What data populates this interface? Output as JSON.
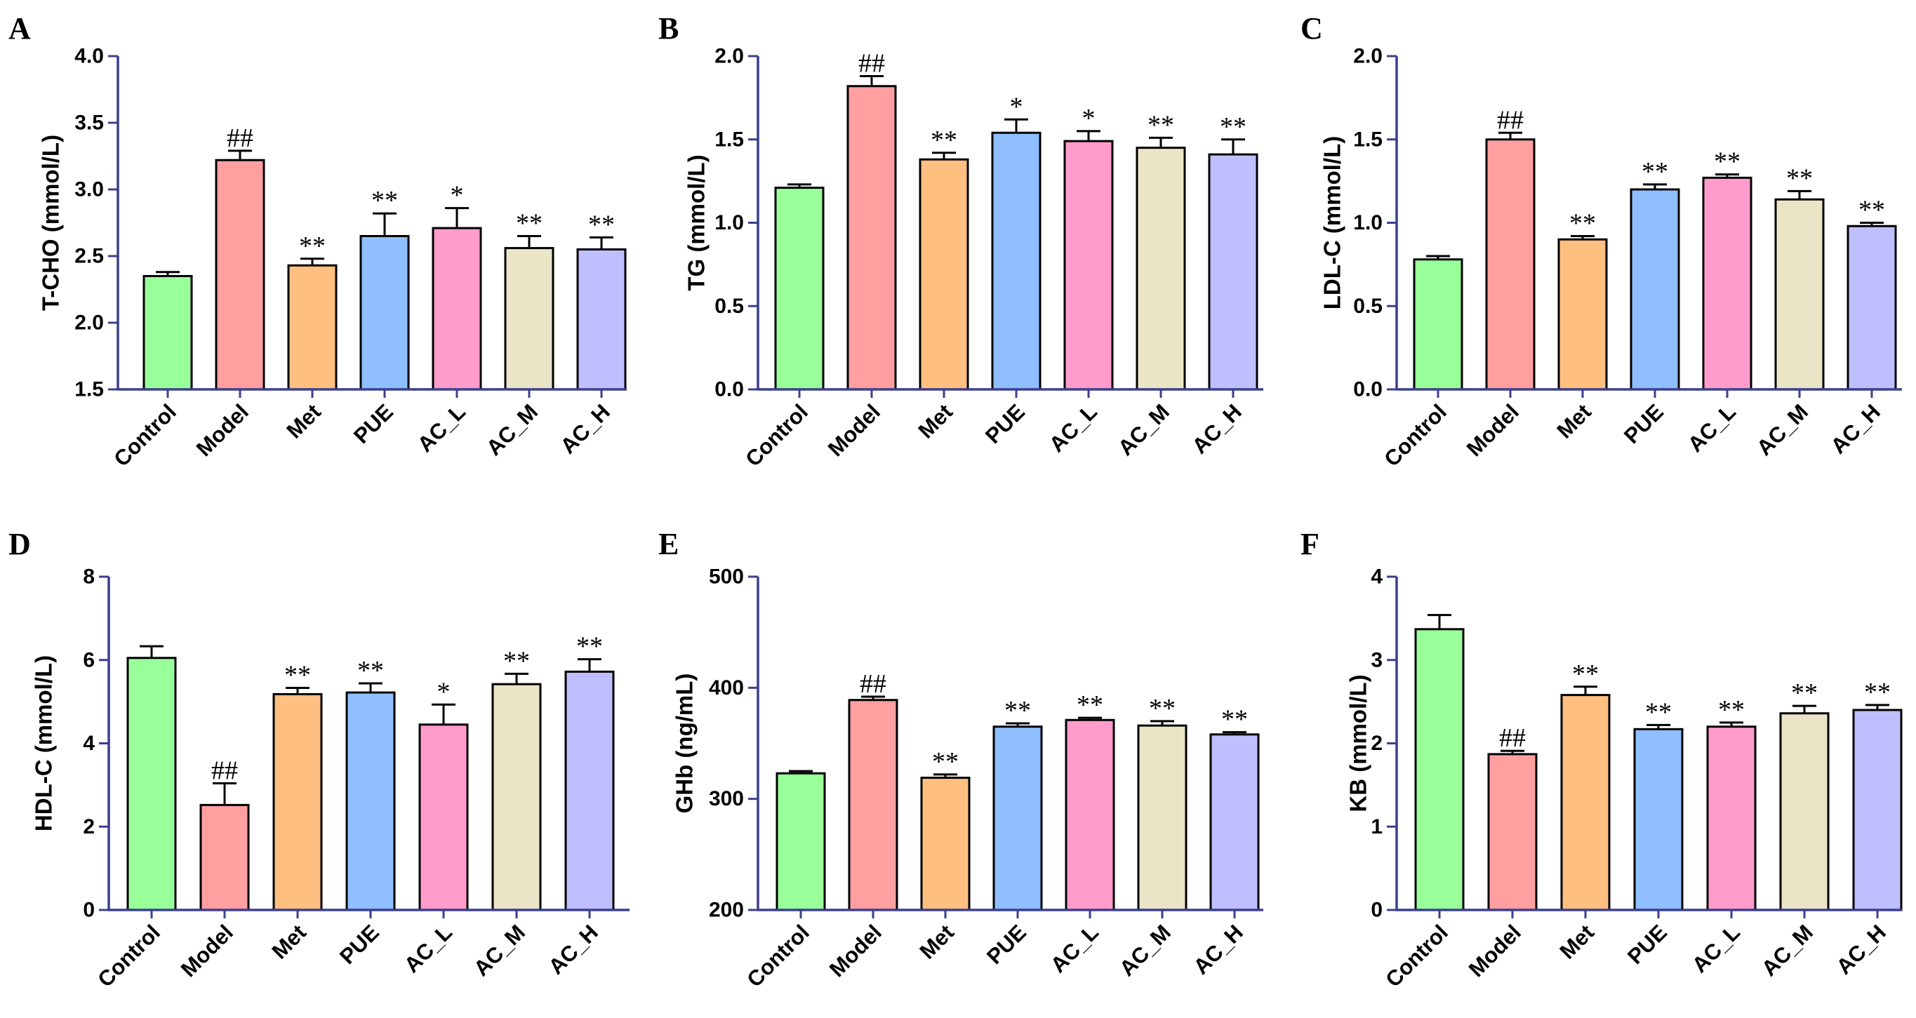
{
  "colors": {
    "axis": "#3b3f8f",
    "bar_outline": "#000000",
    "groups": [
      "#99ff99",
      "#ff9f9f",
      "#ffbf80",
      "#8fbfff",
      "#ff9ccc",
      "#ebe5c8",
      "#bfbfff"
    ]
  },
  "chart_data": [
    {
      "type": "bar",
      "panel": "A",
      "ylabel": "T-CHO (mmol/L)",
      "ylim": [
        1.5,
        4.0
      ],
      "yticks": [
        "1.5",
        "2.0",
        "2.5",
        "3.0",
        "3.5",
        "4.0"
      ],
      "ytick_values": [
        1.5,
        2.0,
        2.5,
        3.0,
        3.5,
        4.0
      ],
      "categories": [
        "Control",
        "Model",
        "Met",
        "PUE",
        "AC_L",
        "AC_M",
        "AC_H"
      ],
      "values": [
        2.35,
        3.22,
        2.43,
        2.65,
        2.71,
        2.56,
        2.55
      ],
      "errors": [
        0.03,
        0.07,
        0.05,
        0.17,
        0.15,
        0.09,
        0.09
      ],
      "significance": [
        "",
        "##",
        "**",
        "**",
        "*",
        "**",
        "**"
      ]
    },
    {
      "type": "bar",
      "panel": "B",
      "ylabel": "TG (mmol/L)",
      "ylim": [
        0.0,
        2.0
      ],
      "yticks": [
        "0.0",
        "0.5",
        "1.0",
        "1.5",
        "2.0"
      ],
      "ytick_values": [
        0.0,
        0.5,
        1.0,
        1.5,
        2.0
      ],
      "categories": [
        "Control",
        "Model",
        "Met",
        "PUE",
        "AC_L",
        "AC_M",
        "AC_H"
      ],
      "values": [
        1.21,
        1.82,
        1.38,
        1.54,
        1.49,
        1.45,
        1.41
      ],
      "errors": [
        0.02,
        0.06,
        0.04,
        0.08,
        0.06,
        0.06,
        0.09
      ],
      "significance": [
        "",
        "##",
        "**",
        "*",
        "*",
        "**",
        "**"
      ]
    },
    {
      "type": "bar",
      "panel": "C",
      "ylabel": "LDL-C (mmol/L)",
      "ylim": [
        0.0,
        2.0
      ],
      "yticks": [
        "0.0",
        "0.5",
        "1.0",
        "1.5",
        "2.0"
      ],
      "ytick_values": [
        0.0,
        0.5,
        1.0,
        1.5,
        2.0
      ],
      "categories": [
        "Control",
        "Model",
        "Met",
        "PUE",
        "AC_L",
        "AC_M",
        "AC_H"
      ],
      "values": [
        0.78,
        1.5,
        0.9,
        1.2,
        1.27,
        1.14,
        0.98
      ],
      "errors": [
        0.02,
        0.04,
        0.02,
        0.03,
        0.02,
        0.05,
        0.02
      ],
      "significance": [
        "",
        "##",
        "**",
        "**",
        "**",
        "**",
        "**"
      ]
    },
    {
      "type": "bar",
      "panel": "D",
      "ylabel": "HDL-C (mmol/L)",
      "ylim": [
        0,
        8
      ],
      "yticks": [
        "0",
        "2",
        "4",
        "6",
        "8"
      ],
      "ytick_values": [
        0,
        2,
        4,
        6,
        8
      ],
      "categories": [
        "Control",
        "Model",
        "Met",
        "PUE",
        "AC_L",
        "AC_M",
        "AC_H"
      ],
      "values": [
        6.05,
        2.52,
        5.18,
        5.22,
        4.45,
        5.42,
        5.72
      ],
      "errors": [
        0.28,
        0.52,
        0.15,
        0.22,
        0.48,
        0.25,
        0.3
      ],
      "significance": [
        "",
        "##",
        "**",
        "**",
        "*",
        "**",
        "**"
      ]
    },
    {
      "type": "bar",
      "panel": "E",
      "ylabel": "GHb (ng/mL)",
      "ylim": [
        200,
        500
      ],
      "yticks": [
        "200",
        "300",
        "400",
        "500"
      ],
      "ytick_values": [
        200,
        300,
        400,
        500
      ],
      "categories": [
        "Control",
        "Model",
        "Met",
        "PUE",
        "AC_L",
        "AC_M",
        "AC_H"
      ],
      "values": [
        323,
        389,
        319,
        365,
        371,
        366,
        358
      ],
      "errors": [
        2,
        3,
        3,
        3,
        2,
        4,
        2
      ],
      "significance": [
        "",
        "##",
        "**",
        "**",
        "**",
        "**",
        "**"
      ]
    },
    {
      "type": "bar",
      "panel": "F",
      "ylabel": "KB (mmol/L)",
      "ylim": [
        0,
        4
      ],
      "yticks": [
        "0",
        "1",
        "2",
        "3",
        "4"
      ],
      "ytick_values": [
        0,
        1,
        2,
        3,
        4
      ],
      "categories": [
        "Control",
        "Model",
        "Met",
        "PUE",
        "AC_L",
        "AC_M",
        "AC_H"
      ],
      "values": [
        3.37,
        1.87,
        2.58,
        2.17,
        2.2,
        2.36,
        2.4
      ],
      "errors": [
        0.17,
        0.04,
        0.1,
        0.05,
        0.05,
        0.09,
        0.06
      ],
      "significance": [
        "",
        "##",
        "**",
        "**",
        "**",
        "**",
        "**"
      ]
    }
  ]
}
